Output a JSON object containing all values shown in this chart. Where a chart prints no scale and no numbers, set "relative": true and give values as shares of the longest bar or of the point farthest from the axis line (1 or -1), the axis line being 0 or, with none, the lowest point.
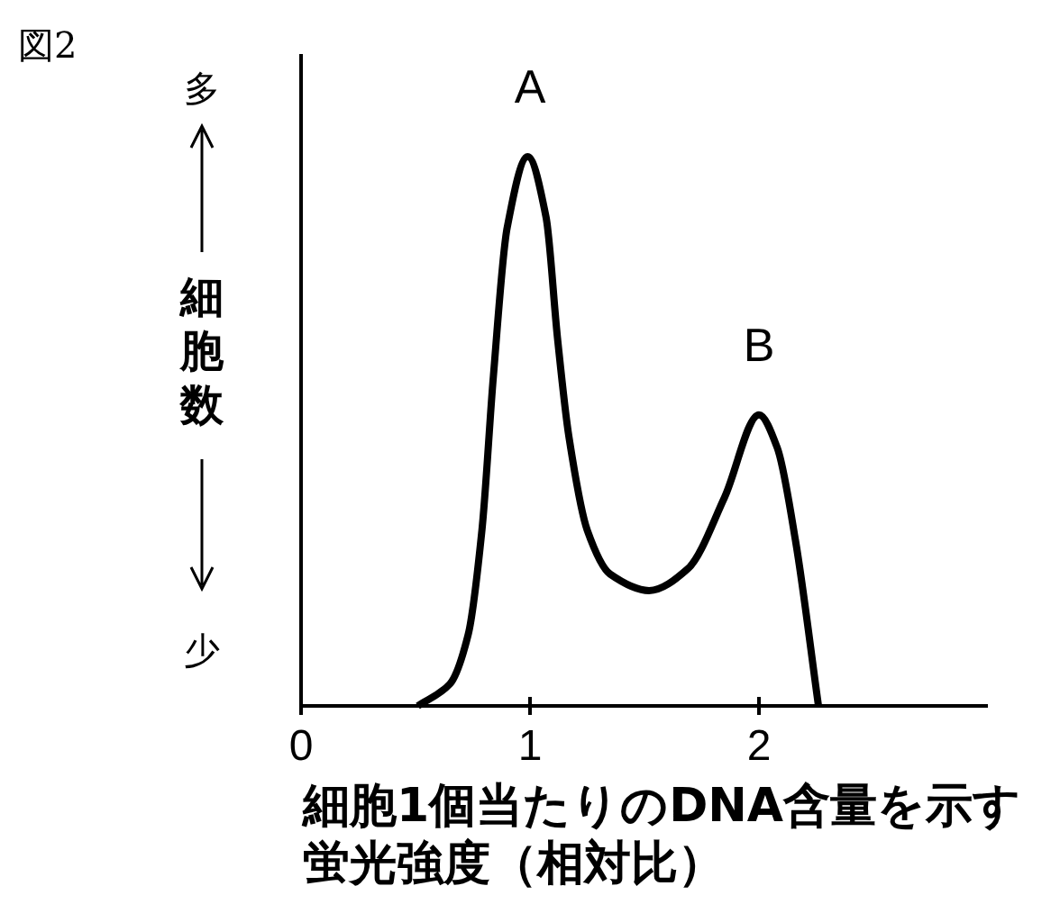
{
  "chart_data": {
    "type": "line",
    "title": "図2",
    "xlabel": "細胞1個当たりのDNA含量を示す蛍光強度（相対比）",
    "ylabel": "細胞数",
    "relative": true,
    "xlim": [
      0,
      3
    ],
    "xticks": [
      0,
      1,
      2
    ],
    "annotations": [
      {
        "text": "A",
        "x": 1,
        "y": 1
      },
      {
        "text": "B",
        "x": 2,
        "y": 0.53
      },
      "多",
      "少"
    ],
    "series": [
      {
        "color": "#000000",
        "x": [
          0.51,
          0.65,
          0.73,
          0.79,
          0.84,
          0.9,
          0.99,
          1.07,
          1.12,
          1.17,
          1.25,
          1.35,
          1.52,
          1.69,
          1.85,
          2.0,
          2.08,
          2.16,
          2.26
        ],
        "values": [
          0,
          0.04,
          0.13,
          0.32,
          0.6,
          0.87,
          1,
          0.89,
          0.67,
          0.49,
          0.32,
          0.24,
          0.21,
          0.25,
          0.38,
          0.53,
          0.47,
          0.3,
          0
        ]
      }
    ]
  }
}
